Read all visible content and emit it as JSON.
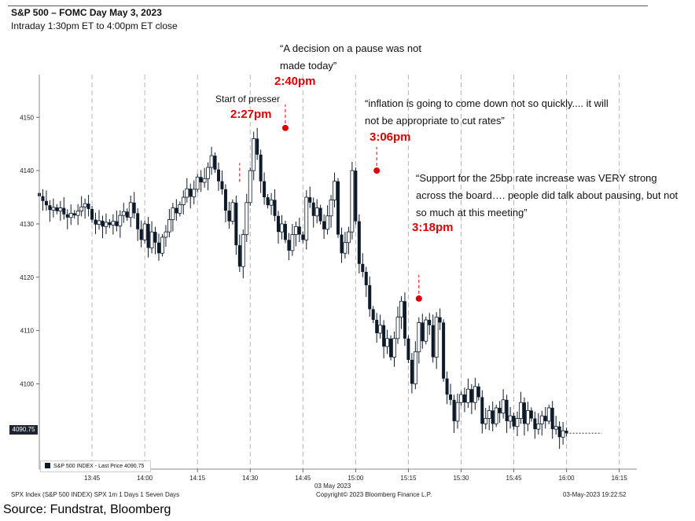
{
  "header": {
    "title": "S&P 500 – FOMC Day May 3, 2023",
    "subtitle": "Intraday 1:30pm ET to 4:00pm ET close"
  },
  "annotations": {
    "pause_quote": "“A decision on a pause was not made today”",
    "inflation_quote": "“inflation is going to come down not so quickly.... it will not be appropriate to cut rates”",
    "support_quote": "“Support for the 25bp rate increase was VERY strong across the board…. people did talk about pausing, but not so much at this meeting”",
    "start_presser": "Start of presser",
    "t227": "2:27pm",
    "t240": "2:40pm",
    "t306": "3:06pm",
    "t318": "3:18pm"
  },
  "legend": {
    "label": "S&P 500 INDEX - Last Price 4090.75"
  },
  "last_price_tag": "4090.75",
  "footer": {
    "left": "SPX Index (S&P 500 INDEX) SPX 1m 1 Days 1 Seven Days",
    "center": "Copyright© 2023 Bloomberg Finance L.P.",
    "right": "03-May-2023 19:22:52",
    "date_label": "03 May 2023"
  },
  "source": "Source: Fundstrat, Bloomberg",
  "colors": {
    "candle": "#0d1a2a",
    "annotation": "#e00000",
    "grid": "#aaaaaa"
  },
  "chart_data": {
    "type": "candlestick",
    "title": "S&P 500 – FOMC Day May 3, 2023",
    "x_ticks": [
      "13:45",
      "14:00",
      "14:15",
      "14:30",
      "14:45",
      "15:00",
      "15:15",
      "15:30",
      "15:45",
      "16:00",
      "16:15"
    ],
    "y_ticks": [
      4100,
      4110,
      4120,
      4130,
      4140,
      4150
    ],
    "ylim": [
      4084,
      4158
    ],
    "xlim_minutes": [
      0,
      170
    ],
    "x_origin": "13:30",
    "last_price": 4090.75,
    "grid": "vertical dashed",
    "series": [
      {
        "name": "S&P 500 INDEX - Last Price",
        "points": [
          [
            0,
            4135.8,
            4135.2
          ],
          [
            1,
            4135.2,
            4134.3
          ],
          [
            2,
            4134.3,
            4133.5
          ],
          [
            3,
            4133.5,
            4132.6
          ],
          [
            4,
            4132.6,
            4133.1
          ],
          [
            5,
            4133.1,
            4132.4
          ],
          [
            6,
            4132.4,
            4133.0
          ],
          [
            7,
            4133.0,
            4131.8
          ],
          [
            8,
            4131.8,
            4131.2
          ],
          [
            9,
            4131.2,
            4132.0
          ],
          [
            10,
            4132.0,
            4131.6
          ],
          [
            11,
            4131.6,
            4132.4
          ],
          [
            12,
            4132.4,
            4133.2
          ],
          [
            13,
            4133.2,
            4133.8
          ],
          [
            14,
            4133.8,
            4132.8
          ],
          [
            15,
            4132.8,
            4130.8
          ],
          [
            16,
            4130.8,
            4129.9
          ],
          [
            17,
            4129.9,
            4130.6
          ],
          [
            18,
            4130.6,
            4129.5
          ],
          [
            19,
            4129.5,
            4130.3
          ],
          [
            20,
            4130.3,
            4129.8
          ],
          [
            21,
            4129.8,
            4130.5
          ],
          [
            22,
            4130.5,
            4129.6
          ],
          [
            23,
            4129.6,
            4131.6
          ],
          [
            24,
            4131.6,
            4132.3
          ],
          [
            25,
            4132.3,
            4131.2
          ],
          [
            26,
            4131.2,
            4134.0
          ],
          [
            27,
            4134.0,
            4132.0
          ],
          [
            28,
            4132.0,
            4129.0
          ],
          [
            29,
            4129.0,
            4127.0
          ],
          [
            30,
            4127.0,
            4130.0
          ],
          [
            31,
            4130.0,
            4125.5
          ],
          [
            32,
            4125.5,
            4128.5
          ],
          [
            33,
            4128.5,
            4126.5
          ],
          [
            34,
            4126.5,
            4124.5
          ],
          [
            35,
            4124.5,
            4127.5
          ],
          [
            36,
            4127.5,
            4128.5
          ],
          [
            37,
            4128.5,
            4130.8
          ],
          [
            38,
            4130.8,
            4133.0
          ],
          [
            39,
            4133.0,
            4132.0
          ],
          [
            40,
            4132.0,
            4133.6
          ],
          [
            41,
            4133.6,
            4135.0
          ],
          [
            42,
            4135.0,
            4136.6
          ],
          [
            43,
            4136.6,
            4135.1
          ],
          [
            44,
            4135.1,
            4136.5
          ],
          [
            45,
            4136.5,
            4138.8
          ],
          [
            46,
            4138.8,
            4137.8
          ],
          [
            47,
            4137.8,
            4138.5
          ],
          [
            48,
            4138.5,
            4140.6
          ],
          [
            49,
            4140.6,
            4142.8
          ],
          [
            50,
            4142.8,
            4140.2
          ],
          [
            51,
            4140.2,
            4138.0
          ],
          [
            52,
            4138.0,
            4136.5
          ],
          [
            53,
            4136.5,
            4132.5
          ],
          [
            54,
            4132.5,
            4130.5
          ],
          [
            55,
            4130.5,
            4134.0
          ],
          [
            56,
            4134.0,
            4126.0
          ],
          [
            57,
            4126.0,
            4122.0
          ],
          [
            58,
            4122.0,
            4128.0
          ],
          [
            59,
            4128.0,
            4134.0
          ],
          [
            60,
            4134.0,
            4140.0
          ],
          [
            61,
            4140.0,
            4146.0
          ],
          [
            62,
            4146.0,
            4143.0
          ],
          [
            63,
            4143.0,
            4138.0
          ],
          [
            64,
            4138.0,
            4135.0
          ],
          [
            65,
            4135.0,
            4133.5
          ],
          [
            66,
            4133.5,
            4134.5
          ],
          [
            67,
            4134.5,
            4131.5
          ],
          [
            68,
            4131.5,
            4128.5
          ],
          [
            69,
            4128.5,
            4130.0
          ],
          [
            70,
            4130.0,
            4127.0
          ],
          [
            71,
            4127.0,
            4125.0
          ],
          [
            72,
            4125.0,
            4128.0
          ],
          [
            73,
            4128.0,
            4129.5
          ],
          [
            74,
            4129.5,
            4128.0
          ],
          [
            75,
            4128.0,
            4127.0
          ],
          [
            76,
            4127.0,
            4135.0
          ],
          [
            77,
            4135.0,
            4134.0
          ],
          [
            78,
            4134.0,
            4131.5
          ],
          [
            79,
            4131.5,
            4133.0
          ],
          [
            80,
            4133.0,
            4130.5
          ],
          [
            81,
            4130.5,
            4129.0
          ],
          [
            82,
            4129.0,
            4131.5
          ],
          [
            83,
            4131.5,
            4134.5
          ],
          [
            84,
            4134.5,
            4138.0
          ],
          [
            85,
            4138.0,
            4128.0
          ],
          [
            86,
            4128.0,
            4124.5
          ],
          [
            87,
            4124.5,
            4126.5
          ],
          [
            88,
            4126.5,
            4128.5
          ],
          [
            89,
            4128.5,
            4140.0
          ],
          [
            90,
            4140.0,
            4130.5
          ],
          [
            91,
            4130.5,
            4122.5
          ],
          [
            92,
            4122.5,
            4121.0
          ],
          [
            93,
            4121.0,
            4118.5
          ],
          [
            94,
            4118.5,
            4114.0
          ],
          [
            95,
            4114.0,
            4112.0
          ],
          [
            96,
            4112.0,
            4109.5
          ],
          [
            97,
            4109.5,
            4111.0
          ],
          [
            98,
            4111.0,
            4107.0
          ],
          [
            99,
            4107.0,
            4108.5
          ],
          [
            100,
            4108.5,
            4105.0
          ],
          [
            101,
            4105.0,
            4108.5
          ],
          [
            102,
            4108.5,
            4112.5
          ],
          [
            103,
            4112.5,
            4115.5
          ],
          [
            104,
            4115.5,
            4108.5
          ],
          [
            105,
            4108.5,
            4104.5
          ],
          [
            106,
            4104.5,
            4100.0
          ],
          [
            107,
            4100.0,
            4106.0
          ],
          [
            108,
            4106.0,
            4111.5
          ],
          [
            109,
            4111.5,
            4108.0
          ],
          [
            110,
            4108.0,
            4112.0
          ],
          [
            111,
            4112.0,
            4111.0
          ],
          [
            112,
            4111.0,
            4105.0
          ],
          [
            113,
            4105.0,
            4112.5
          ],
          [
            114,
            4112.5,
            4111.5
          ],
          [
            115,
            4111.5,
            4101.0
          ],
          [
            116,
            4101.0,
            4098.0
          ],
          [
            117,
            4098.0,
            4097.0
          ],
          [
            118,
            4097.0,
            4093.0
          ],
          [
            119,
            4093.0,
            4096.5
          ],
          [
            120,
            4096.5,
            4098.0
          ],
          [
            121,
            4098.0,
            4096.5
          ],
          [
            122,
            4096.5,
            4099.0
          ],
          [
            123,
            4099.0,
            4096.5
          ],
          [
            124,
            4096.5,
            4099.5
          ],
          [
            125,
            4099.5,
            4097.5
          ],
          [
            126,
            4097.5,
            4092.5
          ],
          [
            127,
            4092.5,
            4093.5
          ],
          [
            128,
            4093.5,
            4095.0
          ],
          [
            129,
            4095.0,
            4092.5
          ],
          [
            130,
            4092.5,
            4095.5
          ],
          [
            131,
            4095.5,
            4094.5
          ],
          [
            132,
            4094.5,
            4097.0
          ],
          [
            133,
            4097.0,
            4093.0
          ],
          [
            134,
            4093.0,
            4094.0
          ],
          [
            135,
            4094.0,
            4092.0
          ],
          [
            136,
            4092.0,
            4093.5
          ],
          [
            137,
            4093.5,
            4096.5
          ],
          [
            138,
            4096.5,
            4092.5
          ],
          [
            139,
            4092.5,
            4095.0
          ],
          [
            140,
            4095.0,
            4093.5
          ],
          [
            141,
            4093.5,
            4091.5
          ],
          [
            142,
            4091.5,
            4092.5
          ],
          [
            143,
            4092.5,
            4094.0
          ],
          [
            144,
            4094.0,
            4093.0
          ],
          [
            145,
            4093.0,
            4095.5
          ],
          [
            146,
            4095.5,
            4091.5
          ],
          [
            147,
            4091.5,
            4092.0
          ],
          [
            148,
            4092.0,
            4090.0
          ],
          [
            149,
            4090.0,
            4091.2
          ],
          [
            150,
            4091.2,
            4090.75
          ],
          [
            151,
            4090.75,
            4090.75
          ]
        ]
      }
    ],
    "markers": [
      {
        "time": "14:27",
        "minute": 57,
        "price": 4137.0,
        "label": "2:27pm"
      },
      {
        "time": "14:40",
        "minute": 70,
        "price": 4148.0,
        "label": "2:40pm"
      },
      {
        "time": "15:06",
        "minute": 96,
        "price": 4140.0,
        "label": "3:06pm"
      },
      {
        "time": "15:18",
        "minute": 108,
        "price": 4116.0,
        "label": "3:18pm"
      }
    ]
  }
}
